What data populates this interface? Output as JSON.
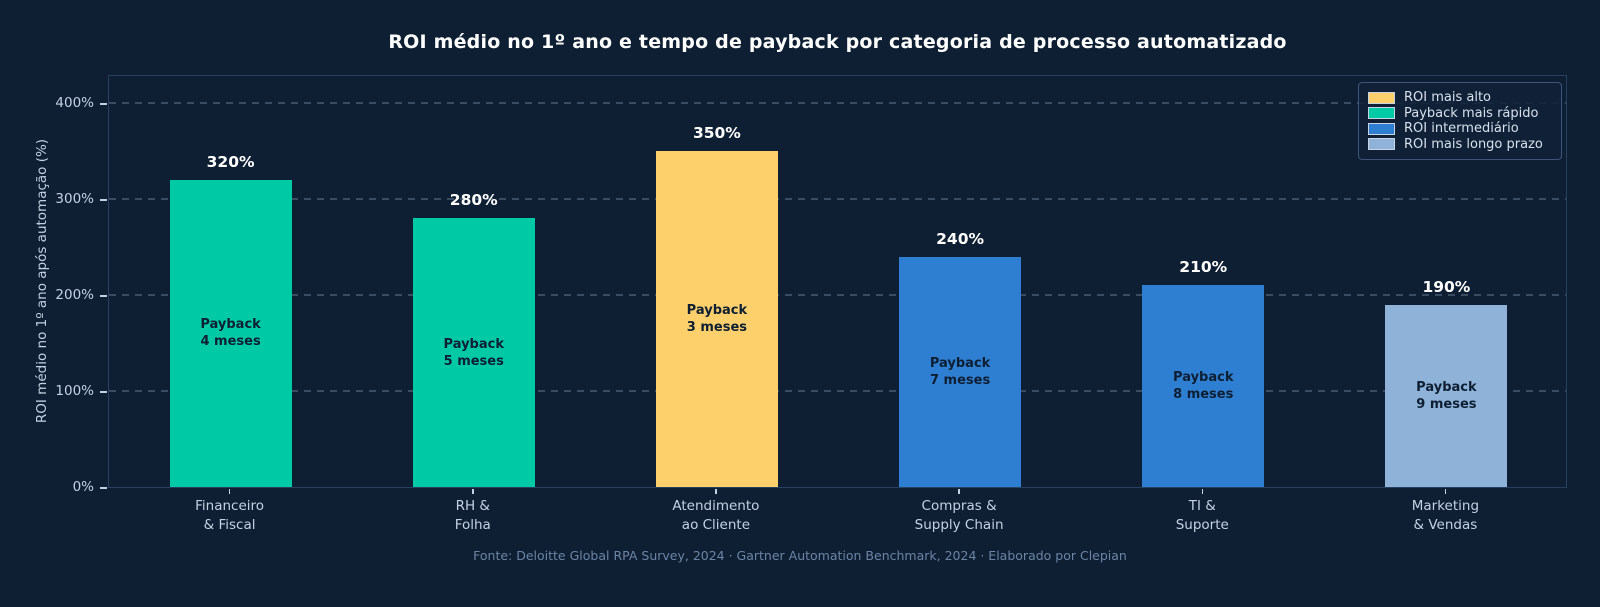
{
  "title": "ROI médio no 1º ano e tempo de payback por categoria de processo automatizado",
  "footer": "Fonte: Deloitte Global RPA Survey, 2024 · Gartner Automation Benchmark, 2024 · Elaborado por Clepian",
  "colors": {
    "background": "#0E1F33",
    "bar_teal": "#00C9A6",
    "bar_yellow": "#FDD06B",
    "bar_blue": "#2E7FD2",
    "bar_lightblue": "#8FB2D8",
    "axis_text": "#C3D2E3",
    "value_label_text": "#FFFFFF",
    "inside_bar_text": "#0E1F33",
    "footer_text": "#6C84A4",
    "plot_border": "#27405F",
    "legend_border": "#3D557A"
  },
  "chart_data": {
    "type": "bar",
    "title": "ROI médio no 1º ano e tempo de payback por categoria de processo automatizado",
    "categories": [
      "Financeiro & Fiscal",
      "RH & Folha",
      "Atendimento ao Cliente",
      "Compras & Supply Chain",
      "TI & Suporte",
      "Marketing & Vendas"
    ],
    "category_lines": [
      [
        "Financeiro",
        "& Fiscal"
      ],
      [
        "RH &",
        "Folha"
      ],
      [
        "Atendimento",
        "ao Cliente"
      ],
      [
        "Compras &",
        "Supply Chain"
      ],
      [
        "TI &",
        "Suporte"
      ],
      [
        "Marketing",
        "& Vendas"
      ]
    ],
    "values": [
      320,
      280,
      350,
      240,
      210,
      190
    ],
    "value_labels": [
      "320%",
      "280%",
      "350%",
      "240%",
      "210%",
      "190%"
    ],
    "payback_months": [
      4,
      5,
      3,
      7,
      8,
      9
    ],
    "payback_labels": [
      [
        "Payback",
        "4 meses"
      ],
      [
        "Payback",
        "5 meses"
      ],
      [
        "Payback",
        "3 meses"
      ],
      [
        "Payback",
        "7 meses"
      ],
      [
        "Payback",
        "8 meses"
      ],
      [
        "Payback",
        "9 meses"
      ]
    ],
    "bar_colors": [
      "#00C9A6",
      "#00C9A6",
      "#FDD06B",
      "#2E7FD2",
      "#2E7FD2",
      "#8FB2D8"
    ],
    "xlabel": "",
    "ylabel": "ROI médio no 1º ano após automação (%)",
    "yticks": {
      "labels": [
        "0%",
        "100%",
        "200%",
        "300%",
        "400%"
      ],
      "values": [
        0,
        100,
        200,
        300,
        400
      ]
    },
    "ylim": [
      0,
      430
    ],
    "grid": "horizontal dashed",
    "legend": {
      "position": "top-right",
      "items": [
        {
          "label": "ROI mais alto",
          "color": "#FDD06B"
        },
        {
          "label": "Payback mais rápido",
          "color": "#00C9A6"
        },
        {
          "label": "ROI intermediário",
          "color": "#2E7FD2"
        },
        {
          "label": "ROI mais longo prazo",
          "color": "#8FB2D8"
        }
      ]
    }
  }
}
